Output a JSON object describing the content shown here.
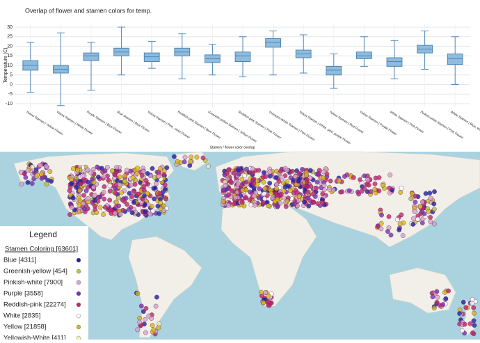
{
  "chart_data": {
    "type": "box",
    "title": "Overlap of flower and stamen colors for temp.",
    "x_label": "Stamen / flower color overlap",
    "y_label": "Temperature (C)",
    "categories": [
      "Yellow Stamen | Yellow Flower",
      "Yellow Stamen | White Flower",
      "Purple Stamen | Blue Flower",
      "Blue Stamen | Blue Flower",
      "Yellow Stamen | Pink, violet Flower",
      "Reddish-pink Stamen | Blue Flower",
      "Greenish-yellow Stamen | Yellow Flower",
      "Reddish-pink Stamen | Pink Flower",
      "Yellowish-White Stamen | Pink Flower",
      "Yellow Stamen | White, pink, purple Flower",
      "Yellow Stamen | Red Flower",
      "Yellow Stamen | Purple Flower",
      "White Stamen | Pink Flower",
      "Pinkish-white Stamen | Pink Flower",
      "White Stamen | Blue, White, Yellow Flower"
    ],
    "boxes": [
      {
        "min": -4,
        "q1": 7.5,
        "median": 10,
        "q3": 12.5,
        "max": 22
      },
      {
        "min": -11,
        "q1": 6,
        "median": 8,
        "q3": 10,
        "max": 27
      },
      {
        "min": -3,
        "q1": 12.5,
        "median": 15,
        "q3": 16.5,
        "max": 22
      },
      {
        "min": 5,
        "q1": 15,
        "median": 17,
        "q3": 19,
        "max": 30
      },
      {
        "min": 8.5,
        "q1": 12,
        "median": 14.5,
        "q3": 16.5,
        "max": 22.5
      },
      {
        "min": 3,
        "q1": 15,
        "median": 17,
        "q3": 19,
        "max": 26.5
      },
      {
        "min": 5,
        "q1": 11.5,
        "median": 13.5,
        "q3": 15.5,
        "max": 21
      },
      {
        "min": 4,
        "q1": 12,
        "median": 15,
        "q3": 17,
        "max": 25
      },
      {
        "min": 5,
        "q1": 19.5,
        "median": 22,
        "q3": 24,
        "max": 28
      },
      {
        "min": 6,
        "q1": 14,
        "median": 16,
        "q3": 18,
        "max": 26
      },
      {
        "min": -2,
        "q1": 5,
        "median": 7.5,
        "q3": 9.5,
        "max": 16
      },
      {
        "min": 9.5,
        "q1": 13.5,
        "median": 15,
        "q3": 17,
        "max": 25
      },
      {
        "min": 3,
        "q1": 9.5,
        "median": 12,
        "q3": 14,
        "max": 23
      },
      {
        "min": 8,
        "q1": 16.5,
        "median": 18.5,
        "q3": 20.5,
        "max": 28
      },
      {
        "min": 0,
        "q1": 10.5,
        "median": 13.5,
        "q3": 16,
        "max": 25
      }
    ],
    "color": "#8fbbdd",
    "edge_color": "#4f86b5",
    "ylim": [
      -12,
      32
    ],
    "yticks": [
      -10,
      -5,
      0,
      5,
      10,
      15,
      20,
      25,
      30
    ],
    "grid": true
  },
  "map": {
    "legend": {
      "title": "Legend",
      "subtitle": "Stamen Coloring [63601]",
      "items": [
        {
          "label": "Blue [4311]",
          "color": "#1f1fa8"
        },
        {
          "label": "Greenish-yellow [454]",
          "color": "#b8c23a"
        },
        {
          "label": "Pinkish-white [7900]",
          "color": "#d9a3c9"
        },
        {
          "label": "Purple [3558]",
          "color": "#7a2fb5"
        },
        {
          "label": "Reddish-pink [22274]",
          "color": "#c2266e"
        },
        {
          "label": "White [2835]",
          "color": "#ffffff"
        },
        {
          "label": "Yellow [21858]",
          "color": "#d9b814"
        },
        {
          "label": "Yellowish-White [411]",
          "color": "#f2eeb0"
        }
      ]
    }
  }
}
